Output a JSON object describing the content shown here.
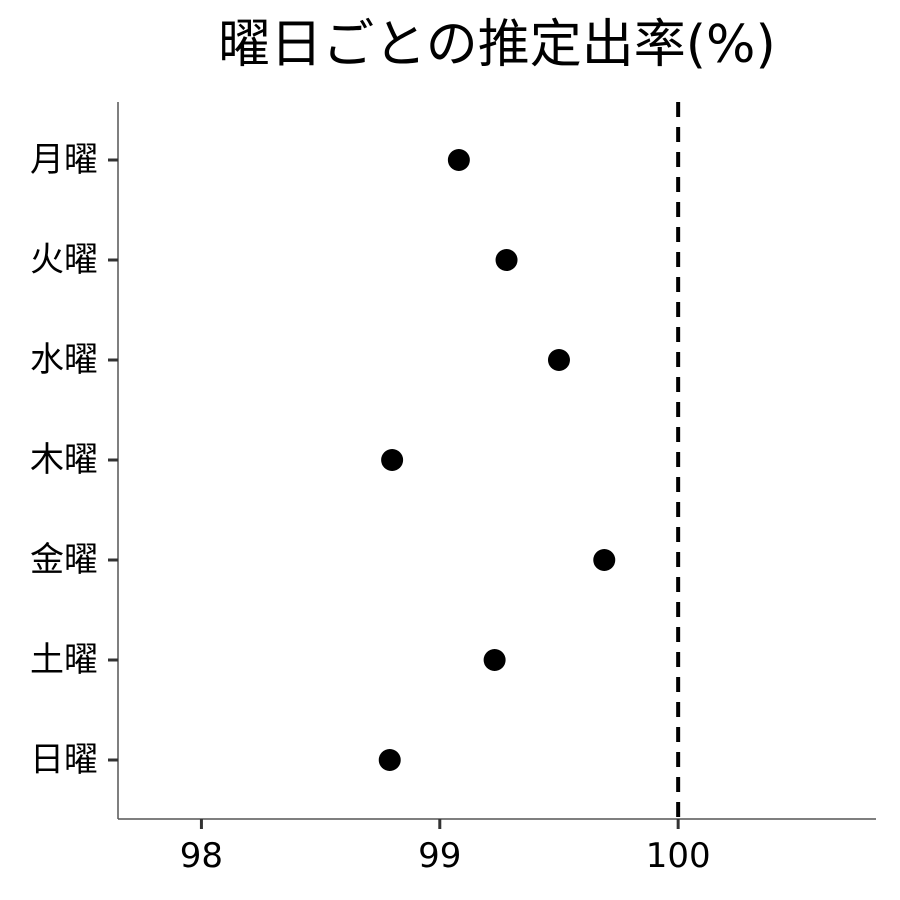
{
  "chart_data": {
    "type": "scatter",
    "title": "曜日ごとの推定出率(%)",
    "xlabel": "",
    "ylabel": "",
    "categories": [
      "月曜",
      "火曜",
      "水曜",
      "木曜",
      "金曜",
      "土曜",
      "日曜"
    ],
    "values": [
      99.08,
      99.28,
      99.5,
      98.8,
      99.69,
      99.23,
      98.79
    ],
    "xlim": [
      97.65,
      100.83
    ],
    "x_ticks": [
      98,
      99,
      100
    ],
    "x_tick_labels": [
      "98",
      "99",
      "100"
    ],
    "reference_line": {
      "x": 100,
      "style": "dashed",
      "color": "#000000"
    },
    "point_color": "#000000",
    "axis_color": "#555555",
    "tick_color": "#333333",
    "grid": false,
    "legend": "none"
  }
}
